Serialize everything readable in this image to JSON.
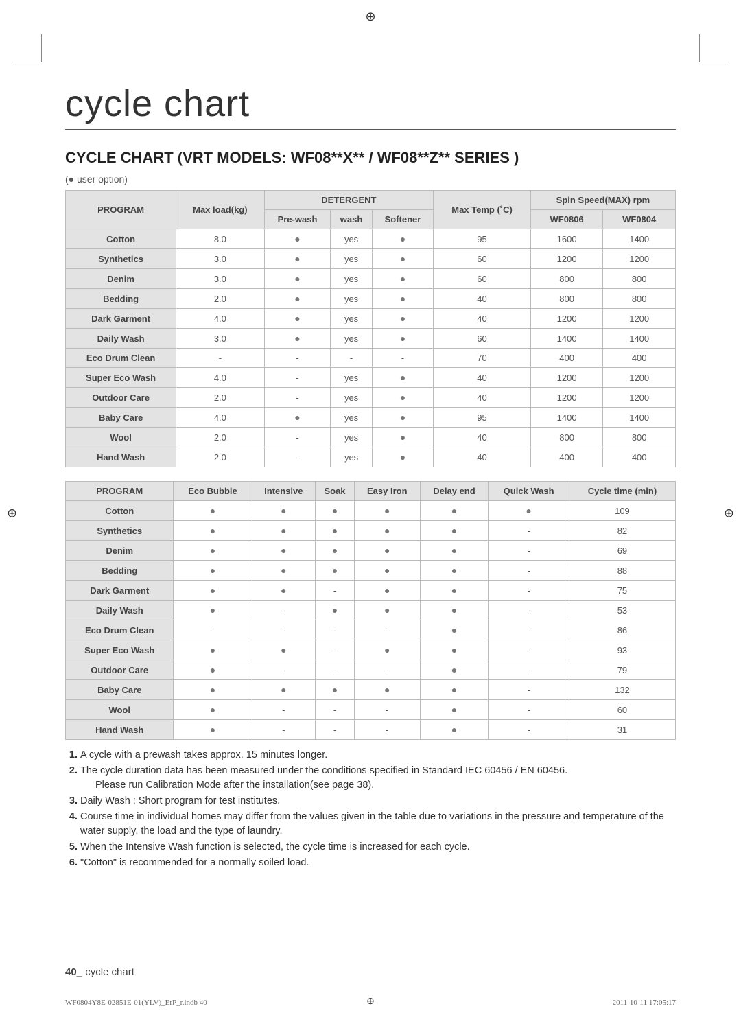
{
  "cropmark_glyph": "⊕",
  "title": "cycle chart",
  "subtitle": "CYCLE CHART (VRT MODELS: WF08**X** / WF08**Z** SERIES )",
  "legend": "(● user option)",
  "dot": "●",
  "dash": "-",
  "table1": {
    "head_program": "PROGRAM",
    "head_maxload": "Max load(kg)",
    "head_detergent": "DETERGENT",
    "head_prewash": "Pre-wash",
    "head_wash": "wash",
    "head_softener": "Softener",
    "head_maxtemp": "Max Temp (˚C)",
    "head_spin": "Spin Speed(MAX) rpm",
    "head_wf0806": "WF0806",
    "head_wf0804": "WF0804",
    "rows": [
      {
        "program": "Cotton",
        "load": "8.0",
        "pre": "dot",
        "wash": "yes",
        "soft": "dot",
        "temp": "95",
        "s6": "1600",
        "s4": "1400"
      },
      {
        "program": "Synthetics",
        "load": "3.0",
        "pre": "dot",
        "wash": "yes",
        "soft": "dot",
        "temp": "60",
        "s6": "1200",
        "s4": "1200"
      },
      {
        "program": "Denim",
        "load": "3.0",
        "pre": "dot",
        "wash": "yes",
        "soft": "dot",
        "temp": "60",
        "s6": "800",
        "s4": "800"
      },
      {
        "program": "Bedding",
        "load": "2.0",
        "pre": "dot",
        "wash": "yes",
        "soft": "dot",
        "temp": "40",
        "s6": "800",
        "s4": "800"
      },
      {
        "program": "Dark Garment",
        "load": "4.0",
        "pre": "dot",
        "wash": "yes",
        "soft": "dot",
        "temp": "40",
        "s6": "1200",
        "s4": "1200"
      },
      {
        "program": "Daily Wash",
        "load": "3.0",
        "pre": "dot",
        "wash": "yes",
        "soft": "dot",
        "temp": "60",
        "s6": "1400",
        "s4": "1400"
      },
      {
        "program": "Eco Drum Clean",
        "load": "-",
        "pre": "-",
        "wash": "-",
        "soft": "-",
        "temp": "70",
        "s6": "400",
        "s4": "400"
      },
      {
        "program": "Super Eco Wash",
        "load": "4.0",
        "pre": "-",
        "wash": "yes",
        "soft": "dot",
        "temp": "40",
        "s6": "1200",
        "s4": "1200"
      },
      {
        "program": "Outdoor Care",
        "load": "2.0",
        "pre": "-",
        "wash": "yes",
        "soft": "dot",
        "temp": "40",
        "s6": "1200",
        "s4": "1200"
      },
      {
        "program": "Baby Care",
        "load": "4.0",
        "pre": "dot",
        "wash": "yes",
        "soft": "dot",
        "temp": "95",
        "s6": "1400",
        "s4": "1400"
      },
      {
        "program": "Wool",
        "load": "2.0",
        "pre": "-",
        "wash": "yes",
        "soft": "dot",
        "temp": "40",
        "s6": "800",
        "s4": "800"
      },
      {
        "program": "Hand Wash",
        "load": "2.0",
        "pre": "-",
        "wash": "yes",
        "soft": "dot",
        "temp": "40",
        "s6": "400",
        "s4": "400"
      }
    ]
  },
  "table2": {
    "head_program": "PROGRAM",
    "head_eco": "Eco Bubble",
    "head_int": "Intensive",
    "head_soak": "Soak",
    "head_easy": "Easy Iron",
    "head_delay": "Delay end",
    "head_quick": "Quick Wash",
    "head_time": "Cycle time (min)",
    "rows": [
      {
        "program": "Cotton",
        "eco": "dot",
        "int": "dot",
        "soak": "dot",
        "easy": "dot",
        "delay": "dot",
        "quick": "dot",
        "time": "109"
      },
      {
        "program": "Synthetics",
        "eco": "dot",
        "int": "dot",
        "soak": "dot",
        "easy": "dot",
        "delay": "dot",
        "quick": "-",
        "time": "82"
      },
      {
        "program": "Denim",
        "eco": "dot",
        "int": "dot",
        "soak": "dot",
        "easy": "dot",
        "delay": "dot",
        "quick": "-",
        "time": "69"
      },
      {
        "program": "Bedding",
        "eco": "dot",
        "int": "dot",
        "soak": "dot",
        "easy": "dot",
        "delay": "dot",
        "quick": "-",
        "time": "88"
      },
      {
        "program": "Dark Garment",
        "eco": "dot",
        "int": "dot",
        "soak": "-",
        "easy": "dot",
        "delay": "dot",
        "quick": "-",
        "time": "75"
      },
      {
        "program": "Daily Wash",
        "eco": "dot",
        "int": "-",
        "soak": "dot",
        "easy": "dot",
        "delay": "dot",
        "quick": "-",
        "time": "53"
      },
      {
        "program": "Eco Drum Clean",
        "eco": "-",
        "int": "-",
        "soak": "-",
        "easy": "-",
        "delay": "dot",
        "quick": "-",
        "time": "86"
      },
      {
        "program": "Super Eco Wash",
        "eco": "dot",
        "int": "dot",
        "soak": "-",
        "easy": "dot",
        "delay": "dot",
        "quick": "-",
        "time": "93"
      },
      {
        "program": "Outdoor Care",
        "eco": "dot",
        "int": "-",
        "soak": "-",
        "easy": "-",
        "delay": "dot",
        "quick": "-",
        "time": "79"
      },
      {
        "program": "Baby Care",
        "eco": "dot",
        "int": "dot",
        "soak": "dot",
        "easy": "dot",
        "delay": "dot",
        "quick": "-",
        "time": "132"
      },
      {
        "program": "Wool",
        "eco": "dot",
        "int": "-",
        "soak": "-",
        "easy": "-",
        "delay": "dot",
        "quick": "-",
        "time": "60"
      },
      {
        "program": "Hand Wash",
        "eco": "dot",
        "int": "-",
        "soak": "-",
        "easy": "-",
        "delay": "dot",
        "quick": "-",
        "time": "31"
      }
    ]
  },
  "notes": {
    "n1": "A cycle with a prewash takes approx. 15 minutes longer.",
    "n2": "The cycle duration data has been measured under the conditions specified in Standard IEC 60456 / EN 60456.",
    "n2b": "Please run Calibration Mode after the installation(see page 38).",
    "n3": "Daily Wash : Short program for test institutes.",
    "n4": "Course time in individual homes may differ from the values given in the table due to variations in the pressure and temperature of the water supply, the load and the type of laundry.",
    "n5": "When the Intensive Wash function is selected, the cycle time is increased for each cycle.",
    "n6": "\"Cotton\" is recommended for a normally soiled load."
  },
  "footer": {
    "page_num": "40_",
    "page_label": " cycle chart",
    "print_left": "WF0804Y8E-02851E-01(YLV)_ErP_r.indb   40",
    "print_right": "2011-10-11   17:05:17"
  }
}
